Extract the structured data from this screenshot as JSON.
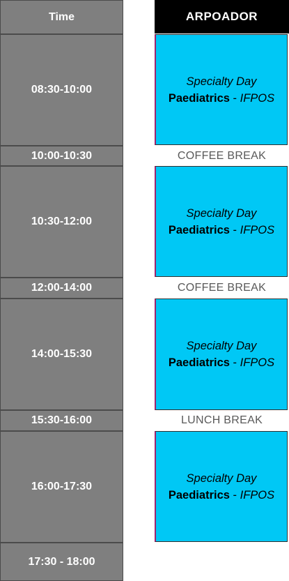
{
  "header": {
    "time_label": "Time",
    "venue_label": "ARPOADOR"
  },
  "time_slots": [
    "08:30-10:00",
    "10:00-10:30",
    "10:30-12:00",
    "12:00-14:00",
    "14:00-15:30",
    "15:30-16:00",
    "16:00-17:30",
    "17:30 - 18:00"
  ],
  "sessions": [
    {
      "title": "Specialty Day",
      "subject": "Paediatrics",
      "separator": " - ",
      "organizer": "IFPOS"
    },
    {
      "title": "Specialty Day",
      "subject": "Paediatrics",
      "separator": " - ",
      "organizer": "IFPOS"
    },
    {
      "title": "Specialty Day",
      "subject": "Paediatrics",
      "separator": " - ",
      "organizer": "IFPOS"
    },
    {
      "title": "Specialty Day",
      "subject": "Paediatrics",
      "separator": " - ",
      "organizer": "IFPOS"
    }
  ],
  "breaks": [
    "COFFEE BREAK",
    "COFFEE BREAK",
    "LUNCH BREAK"
  ],
  "colors": {
    "time_cell_bg": "#7f7f7f",
    "venue_header_bg": "#000000",
    "session_bg": "#00c8f5",
    "break_text": "#595959"
  }
}
